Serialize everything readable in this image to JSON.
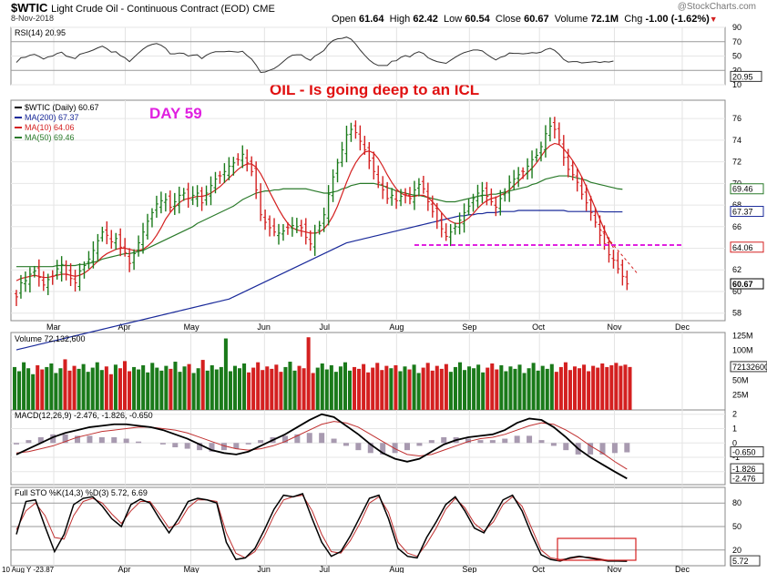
{
  "header": {
    "symbol": "$WTIC",
    "description": "Light Crude Oil - Continuous Contract (EOD)",
    "exchange": "CME",
    "date": "8-Nov-2018",
    "open_label": "Open",
    "open": "61.64",
    "high_label": "High",
    "high": "62.42",
    "low_label": "Low",
    "low": "60.54",
    "close_label": "Close",
    "close": "60.67",
    "volume_label": "Volume",
    "volume": "72.1M",
    "chg_label": "Chg",
    "chg": "-1.00 (-1.62%)",
    "credit": "@StockCharts.com"
  },
  "annotations": {
    "headline": "OIL - Is going deep to an ICL",
    "day_count": "DAY 59"
  },
  "colors": {
    "up": "#1a7a1a",
    "down": "#d42020",
    "ma200": "#1a2a9a",
    "ma10": "#d42020",
    "ma50": "#2a7a2a",
    "support": "#e020e0",
    "annotation": "#e020e0",
    "headline": "#e01010"
  },
  "chart_data": [
    {
      "type": "line",
      "name": "RSI",
      "legend": "RSI(14) 20.95",
      "y_ticks": [
        "90",
        "70",
        "50",
        "30",
        "10"
      ],
      "last_value_label": "20.95",
      "x": [
        "Mar",
        "Apr",
        "May",
        "Jun",
        "Jul",
        "Aug",
        "Sep",
        "Oct",
        "Nov"
      ],
      "values": [
        52,
        61,
        66,
        48,
        60,
        44,
        56,
        72,
        21
      ],
      "ylim": [
        10,
        90
      ]
    },
    {
      "type": "candlestick",
      "name": "price",
      "legend": [
        "$WTIC (Daily) 60.67",
        "MA(200) 67.37",
        "MA(10) 64.06",
        "MA(50) 69.46"
      ],
      "x_labels": [
        "Mar",
        "Apr",
        "May",
        "Jun",
        "Jul",
        "Aug",
        "Sep",
        "Oct",
        "Nov",
        "Dec"
      ],
      "y_ticks": [
        "76",
        "74",
        "72",
        "70",
        "68",
        "66",
        "64",
        "62",
        "60",
        "58"
      ],
      "y_labels": [
        "69.46",
        "67.37",
        "64.06",
        "60.67"
      ],
      "ylim": [
        57.3,
        77.7
      ],
      "close": [
        59.5,
        60.8,
        61.0,
        61.6,
        61.9,
        61.3,
        60.6,
        61.1,
        61.4,
        62.1,
        62.5,
        61.6,
        61.2,
        60.8,
        61.9,
        62.4,
        63.0,
        63.8,
        64.7,
        65.5,
        65.2,
        64.6,
        64.9,
        64.1,
        63.6,
        62.6,
        63.5,
        64.5,
        65.5,
        66.5,
        67.3,
        68.1,
        68.4,
        68.5,
        67.8,
        68.3,
        68.9,
        69.1,
        68.6,
        68.9,
        69.1,
        68.2,
        69.1,
        69.8,
        70.4,
        70.7,
        71.1,
        71.6,
        71.9,
        72.2,
        72.7,
        71.9,
        71.1,
        69.4,
        67.1,
        66.4,
        65.9,
        65.5,
        65.4,
        65.6,
        65.9,
        66.1,
        66.0,
        65.9,
        65.0,
        64.4,
        65.4,
        66.1,
        67.1,
        69.0,
        70.6,
        71.9,
        73.1,
        74.5,
        75.0,
        74.7,
        73.9,
        73.1,
        72.1,
        71.1,
        70.1,
        69.4,
        68.6,
        68.9,
        68.4,
        68.8,
        69.0,
        68.6,
        69.4,
        69.9,
        69.5,
        68.3,
        67.4,
        66.5,
        65.8,
        65.1,
        65.5,
        66.0,
        66.6,
        67.3,
        67.9,
        68.6,
        69.1,
        69.3,
        68.8,
        68.3,
        67.8,
        68.6,
        69.1,
        70.1,
        70.4,
        70.8,
        71.1,
        71.6,
        72.2,
        72.6,
        73.4,
        74.6,
        75.3,
        75.0,
        74.0,
        72.4,
        71.3,
        70.8,
        70.1,
        69.0,
        68.2,
        67.3,
        66.4,
        65.2,
        64.4,
        63.4,
        62.9,
        62.1,
        61.4,
        60.7
      ],
      "ma10": [
        61.0,
        61.2,
        61.3,
        61.4,
        61.5,
        61.4,
        61.3,
        61.3,
        61.4,
        61.5,
        61.6,
        61.6,
        61.5,
        61.4,
        61.5,
        61.7,
        62.0,
        62.4,
        62.8,
        63.2,
        63.5,
        63.7,
        63.9,
        64.0,
        64.0,
        63.9,
        63.8,
        63.8,
        63.9,
        64.2,
        64.6,
        65.2,
        65.9,
        66.7,
        67.3,
        67.8,
        68.2,
        68.5,
        68.6,
        68.7,
        68.8,
        68.8,
        68.9,
        69.1,
        69.4,
        69.7,
        70.1,
        70.5,
        70.9,
        71.3,
        71.6,
        71.8,
        71.8,
        71.5,
        70.9,
        70.1,
        69.2,
        68.4,
        67.6,
        66.9,
        66.3,
        65.9,
        65.7,
        65.6,
        65.5,
        65.4,
        65.4,
        65.5,
        65.8,
        66.3,
        67.0,
        67.9,
        69.0,
        70.1,
        71.1,
        71.9,
        72.5,
        72.9,
        73.0,
        72.8,
        72.3,
        71.6,
        70.8,
        70.1,
        69.5,
        69.1,
        68.9,
        68.8,
        68.8,
        68.9,
        68.9,
        68.7,
        68.3,
        67.8,
        67.3,
        66.8,
        66.5,
        66.3,
        66.3,
        66.5,
        66.8,
        67.2,
        67.7,
        68.1,
        68.4,
        68.6,
        68.7,
        68.9,
        69.1,
        69.4,
        69.8,
        70.2,
        70.6,
        71.0,
        71.4,
        71.9,
        72.5,
        73.1,
        73.5,
        73.7,
        73.6,
        73.2,
        72.7,
        72.1,
        71.4,
        70.6,
        69.7,
        68.7,
        67.7,
        66.7,
        65.7,
        64.8,
        64.06
      ],
      "ma50": [
        62.3,
        62.3,
        62.3,
        62.3,
        62.3,
        62.3,
        62.3,
        62.3,
        62.3,
        62.4,
        62.4,
        62.4,
        62.4,
        62.4,
        62.5,
        62.5,
        62.6,
        62.7,
        62.8,
        63.0,
        63.1,
        63.2,
        63.3,
        63.4,
        63.5,
        63.5,
        63.6,
        63.7,
        63.8,
        64.0,
        64.2,
        64.4,
        64.6,
        64.8,
        65.0,
        65.2,
        65.4,
        65.6,
        65.8,
        66.0,
        66.3,
        66.5,
        66.7,
        66.9,
        67.1,
        67.3,
        67.5,
        67.7,
        67.9,
        68.2,
        68.5,
        68.7,
        68.9,
        69.1,
        69.2,
        69.3,
        69.3,
        69.4,
        69.4,
        69.5,
        69.5,
        69.5,
        69.5,
        69.5,
        69.5,
        69.4,
        69.3,
        69.2,
        69.1,
        69.1,
        69.2,
        69.3,
        69.5,
        69.6,
        69.8,
        69.9,
        70.0,
        70.0,
        70.0,
        70.0,
        69.9,
        69.8,
        69.6,
        69.5,
        69.3,
        69.2,
        69.1,
        69.0,
        68.9,
        68.9,
        68.8,
        68.7,
        68.6,
        68.5,
        68.4,
        68.3,
        68.3,
        68.3,
        68.4,
        68.5,
        68.6,
        68.7,
        68.8,
        68.9,
        68.9,
        69.0,
        69.0,
        69.1,
        69.2,
        69.3,
        69.4,
        69.5,
        69.6,
        69.7,
        69.9,
        70.0,
        70.2,
        70.4,
        70.5,
        70.6,
        70.7,
        70.7,
        70.7,
        70.6,
        70.5,
        70.4,
        70.3,
        70.1,
        70.0,
        69.9,
        69.8,
        69.7,
        69.6,
        69.5,
        69.46
      ],
      "ma200": [
        54.6,
        54.7,
        54.8,
        54.9,
        55.0,
        55.1,
        55.2,
        55.3,
        55.4,
        55.5,
        55.6,
        55.7,
        55.8,
        55.9,
        56.0,
        56.1,
        56.2,
        56.3,
        56.4,
        56.5,
        56.6,
        56.7,
        56.8,
        56.9,
        57.0,
        57.1,
        57.2,
        57.3,
        57.4,
        57.5,
        57.6,
        57.7,
        57.8,
        57.9,
        58.0,
        58.1,
        58.2,
        58.3,
        58.4,
        58.5,
        58.6,
        58.7,
        58.8,
        58.9,
        59.0,
        59.1,
        59.2,
        59.3,
        59.5,
        59.7,
        59.9,
        60.1,
        60.3,
        60.5,
        60.7,
        60.9,
        61.1,
        61.3,
        61.5,
        61.7,
        61.9,
        62.1,
        62.3,
        62.5,
        62.7,
        62.9,
        63.1,
        63.3,
        63.5,
        63.7,
        63.9,
        64.1,
        64.3,
        64.5,
        64.6,
        64.7,
        64.8,
        64.9,
        65.0,
        65.1,
        65.2,
        65.3,
        65.4,
        65.5,
        65.6,
        65.7,
        65.8,
        65.9,
        66.0,
        66.1,
        66.2,
        66.3,
        66.4,
        66.5,
        66.6,
        66.7,
        66.8,
        66.9,
        67.0,
        67.0,
        67.1,
        67.1,
        67.2,
        67.2,
        67.3,
        67.3,
        67.3,
        67.4,
        67.4,
        67.4,
        67.4,
        67.5,
        67.5,
        67.5,
        67.5,
        67.5,
        67.5,
        67.5,
        67.5,
        67.5,
        67.5,
        67.5,
        67.4,
        67.4,
        67.4,
        67.4,
        67.4,
        67.4,
        67.4,
        67.4,
        67.37,
        67.37,
        67.37,
        67.37,
        67.37
      ],
      "support_level": 64.3
    },
    {
      "type": "bar",
      "name": "volume",
      "legend": "Volume 72,132,600",
      "y_ticks": [
        "125M",
        "100M",
        "75M",
        "50M",
        "25M"
      ],
      "last_value_label": "72132600",
      "ylim": [
        0,
        130
      ],
      "values_m": [
        72,
        65,
        80,
        70,
        60,
        75,
        68,
        72,
        78,
        62,
        70,
        85,
        66,
        74,
        69,
        77,
        64,
        71,
        80,
        67,
        73,
        60,
        76,
        70,
        82,
        65,
        72,
        68,
        75,
        63,
        79,
        71,
        66,
        74,
        69,
        81,
        64,
        73,
        77,
        62,
        70,
        84,
        66,
        75,
        68,
        72,
        120,
        65,
        74,
        70,
        78,
        63,
        71,
        80,
        67,
        73,
        69,
        76,
        64,
        72,
        81,
        66,
        74,
        70,
        122,
        62,
        71,
        78,
        68,
        75,
        64,
        73,
        80,
        66,
        72,
        69,
        77,
        63,
        71,
        79,
        67,
        74,
        70,
        75,
        65,
        73,
        68,
        76,
        62,
        71,
        79,
        66,
        74,
        69,
        77,
        64,
        72,
        80,
        67,
        73,
        70,
        76,
        63,
        71,
        78,
        68,
        75,
        65,
        73,
        69,
        76,
        62,
        70,
        79,
        66,
        74,
        69,
        77,
        64,
        72,
        80,
        67,
        73,
        70,
        76,
        65,
        74,
        71,
        78,
        72,
        75,
        79,
        74,
        76,
        72.1
      ]
    },
    {
      "type": "line",
      "name": "MACD",
      "legend": "MACD(12,26,9) -2.476, -1.826, -0.650",
      "y_ticks": [
        "2",
        "1",
        "0",
        "-1",
        "-2"
      ],
      "y_labels": [
        "-0.650",
        "-1.826",
        "-2.476"
      ],
      "ylim": [
        -2.9,
        2.3
      ],
      "macd": [
        -0.8,
        -0.4,
        0.0,
        0.4,
        0.7,
        0.9,
        1.1,
        1.2,
        1.3,
        1.3,
        1.2,
        1.1,
        0.9,
        0.6,
        0.3,
        -0.1,
        -0.5,
        -0.7,
        -0.8,
        -0.6,
        -0.2,
        0.2,
        0.6,
        1.1,
        1.6,
        2.0,
        1.8,
        1.2,
        0.6,
        -0.1,
        -0.7,
        -1.1,
        -1.3,
        -1.1,
        -0.6,
        -0.1,
        0.2,
        0.4,
        0.5,
        0.6,
        0.9,
        1.4,
        1.7,
        1.6,
        1.1,
        0.4,
        -0.4,
        -1.0,
        -1.5,
        -2.0,
        -2.476
      ],
      "signal": [
        -0.7,
        -0.6,
        -0.4,
        -0.2,
        0.1,
        0.4,
        0.6,
        0.8,
        0.9,
        1.0,
        1.1,
        1.1,
        1.0,
        0.9,
        0.7,
        0.4,
        0.1,
        -0.2,
        -0.4,
        -0.5,
        -0.4,
        -0.2,
        0.1,
        0.5,
        0.9,
        1.3,
        1.5,
        1.4,
        1.1,
        0.6,
        0.1,
        -0.4,
        -0.8,
        -0.9,
        -0.8,
        -0.5,
        -0.2,
        0.1,
        0.3,
        0.4,
        0.6,
        0.9,
        1.2,
        1.4,
        1.3,
        0.9,
        0.4,
        -0.2,
        -0.7,
        -1.3,
        -1.826
      ]
    },
    {
      "type": "line",
      "name": "Full Stochastic",
      "legend": "Full STO %K(14,3) %D(3) 5.72, 6.69",
      "y_ticks": [
        "80",
        "50",
        "20"
      ],
      "last_value_label": "5.72",
      "ylim": [
        0,
        100
      ],
      "k": [
        40,
        82,
        84,
        50,
        18,
        40,
        78,
        86,
        88,
        76,
        60,
        50,
        78,
        85,
        80,
        60,
        42,
        60,
        82,
        86,
        84,
        80,
        30,
        8,
        10,
        22,
        46,
        72,
        90,
        88,
        92,
        60,
        30,
        12,
        18,
        38,
        62,
        86,
        90,
        60,
        22,
        12,
        10,
        36,
        56,
        78,
        88,
        70,
        48,
        42,
        62,
        84,
        90,
        70,
        40,
        14,
        8,
        6,
        10,
        12,
        10,
        8,
        6,
        6,
        5.72
      ],
      "d": [
        46,
        70,
        80,
        64,
        36,
        34,
        64,
        82,
        86,
        80,
        66,
        54,
        70,
        82,
        82,
        66,
        48,
        54,
        74,
        84,
        84,
        82,
        42,
        16,
        10,
        18,
        38,
        64,
        84,
        88,
        90,
        70,
        40,
        18,
        16,
        32,
        54,
        80,
        88,
        68,
        30,
        16,
        12,
        28,
        48,
        72,
        86,
        74,
        54,
        44,
        56,
        78,
        88,
        76,
        48,
        20,
        10,
        8,
        9,
        11,
        11,
        9,
        7,
        6.5,
        6.69
      ]
    }
  ],
  "bottom_axis": {
    "left_label": "10 Aug Y -23.87",
    "months": [
      "Apr",
      "May",
      "Jun",
      "Jul",
      "Aug",
      "Sep",
      "Oct",
      "Nov",
      "Dec"
    ]
  }
}
